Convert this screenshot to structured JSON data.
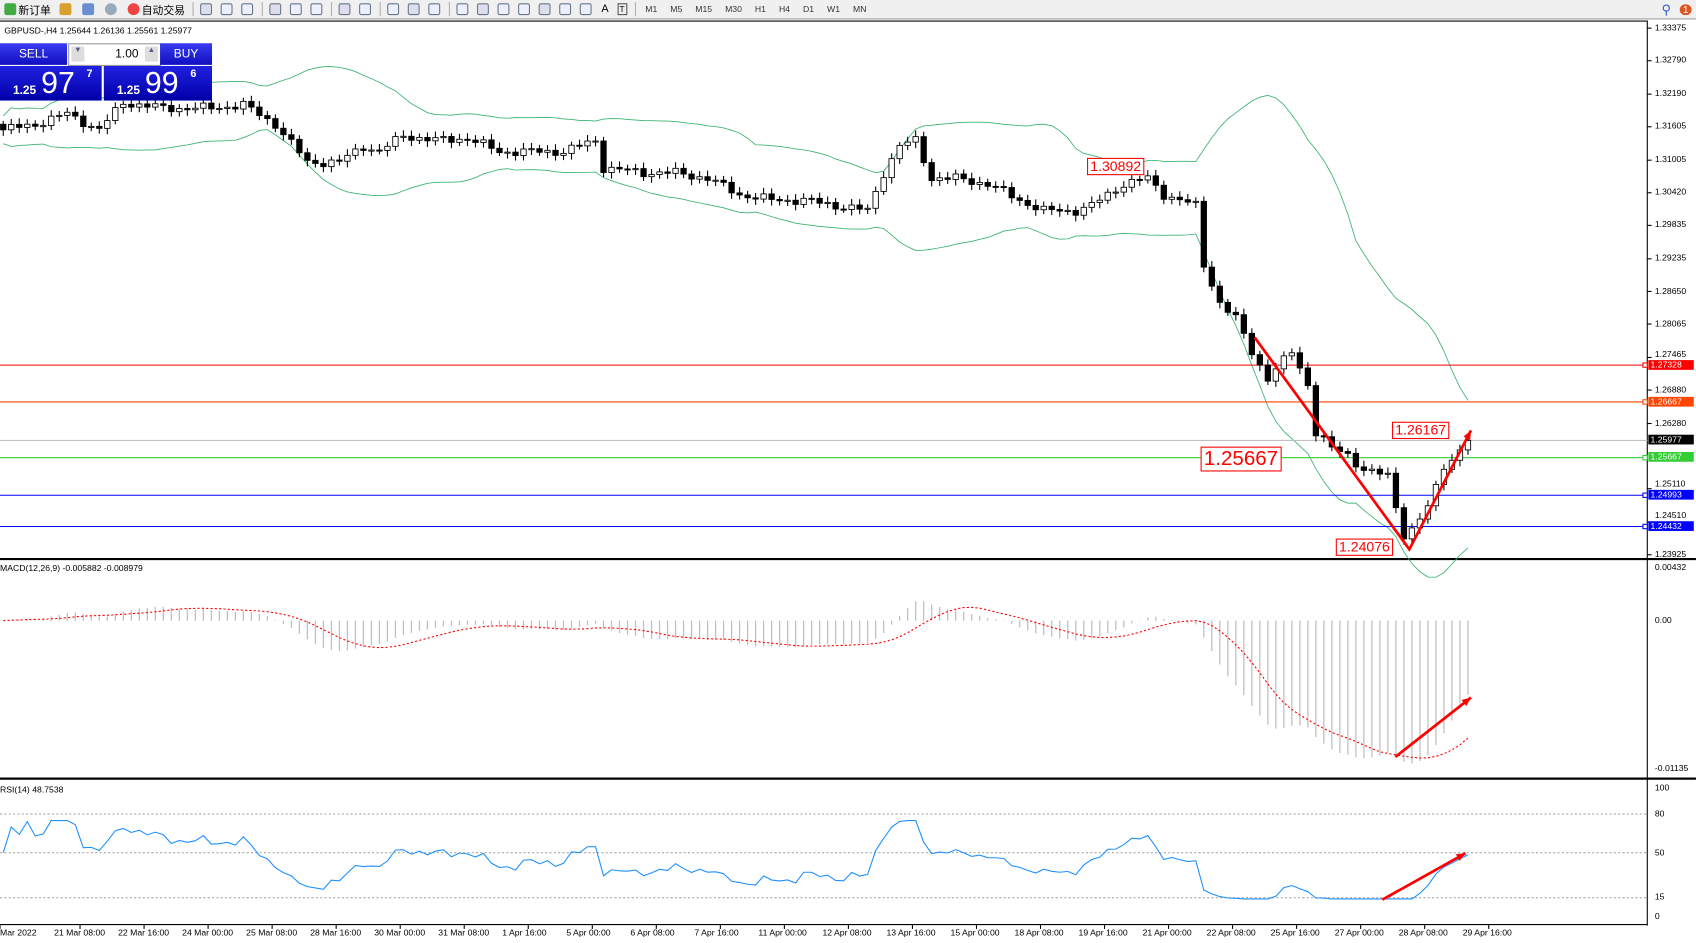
{
  "toolbar": {
    "items": [
      {
        "icon": "new-order-icon",
        "label": "新订单"
      },
      {
        "icon": "market-watch-icon",
        "label": ""
      },
      {
        "icon": "navigator-icon",
        "label": ""
      },
      {
        "icon": "signals-icon",
        "label": ""
      },
      {
        "icon": "autotrading-icon",
        "label": "自动交易"
      }
    ],
    "timeframes": [
      "M1",
      "M5",
      "M15",
      "M30",
      "H1",
      "H4",
      "D1",
      "W1",
      "MN"
    ],
    "tools": [
      "bar-chart-icon",
      "candlestick-icon",
      "line-chart-icon",
      "zoom-in-icon",
      "zoom-out-icon",
      "tile-windows-icon",
      "autoscroll-icon",
      "chart-shift-icon",
      "indicators-icon",
      "periods-icon",
      "templates-icon",
      "cursor-icon",
      "crosshair-icon",
      "vertical-line-icon",
      "horizontal-line-icon",
      "trendline-icon",
      "fibonacci-icon",
      "fibo-fan-icon"
    ],
    "text_tool": "A",
    "label_tool": "T",
    "notification_count": "1"
  },
  "chart": {
    "symbol_info": "GBPUSD-,H4  1.25644 1.26136 1.25561 1.25977",
    "trade_panel": {
      "sell": "SELL",
      "buy": "BUY",
      "volume": "1.00",
      "bid": {
        "small": "1.25",
        "big": "97",
        "pip": "7"
      },
      "ask": {
        "small": "1.25",
        "big": "99",
        "pip": "6"
      }
    },
    "price_axis": [
      "1.33375",
      "1.32790",
      "1.32190",
      "1.31605",
      "1.31005",
      "1.30420",
      "1.29835",
      "1.29235",
      "1.28650",
      "1.28065",
      "1.27465",
      "1.26880",
      "1.26280",
      "1.25110",
      "1.24510",
      "1.23925"
    ],
    "hlines": [
      {
        "price": 1.27328,
        "label": "1.27328",
        "color": "#ff0000"
      },
      {
        "price": 1.26667,
        "label": "1.26667",
        "color": "#ff4500"
      },
      {
        "price": 1.25977,
        "label": "1.25977",
        "color": "#c0c0c0",
        "tag": "#000000"
      },
      {
        "price": 1.25667,
        "label": "1.25667",
        "color": "#32cd32"
      },
      {
        "price": 1.24993,
        "label": "1.24993",
        "color": "#0000ff"
      },
      {
        "price": 1.24432,
        "label": "1.24432",
        "color": "#0000ff"
      }
    ],
    "annotations": [
      "1.30892",
      "1.26167",
      "1.25667",
      "1.24076"
    ],
    "colors": {
      "bands": "#3cb371",
      "candle": "#000000",
      "arrow": "#ff0000",
      "rsi": "#1e90ff",
      "macd_hist": "#c0c0c0",
      "macd_signal": "#ff0000"
    }
  },
  "macd": {
    "label": "MACD(12,26,9) -0.005882 -0.008979",
    "axis": [
      "0.00432",
      "0.00",
      "-0.01135"
    ]
  },
  "rsi": {
    "label": "RSI(14) 48.7538",
    "axis": [
      "100",
      "80",
      "50",
      "15",
      "0"
    ]
  },
  "time_axis": [
    "Mar 2022",
    "21 Mar 08:00",
    "22 Mar 16:00",
    "24 Mar 00:00",
    "25 Mar 08:00",
    "28 Mar 16:00",
    "30 Mar 00:00",
    "31 Mar 08:00",
    "1 Apr 16:00",
    "5 Apr 00:00",
    "6 Apr 08:00",
    "7 Apr 16:00",
    "11 Apr 00:00",
    "12 Apr 08:00",
    "13 Apr 16:00",
    "15 Apr 00:00",
    "18 Apr 08:00",
    "19 Apr 16:00",
    "21 Apr 00:00",
    "22 Apr 08:00",
    "25 Apr 16:00",
    "27 Apr 00:00",
    "28 Apr 08:00",
    "29 Apr 16:00"
  ],
  "chart_data": {
    "type": "candlestick",
    "timeframe": "H4",
    "close_path": [
      [
        0,
        1.3155
      ],
      [
        4,
        1.3165
      ],
      [
        8,
        1.3184
      ],
      [
        12,
        1.3155
      ],
      [
        15,
        1.3204
      ],
      [
        20,
        1.3194
      ],
      [
        26,
        1.3194
      ],
      [
        30,
        1.32
      ],
      [
        34,
        1.3165
      ],
      [
        38,
        1.3097
      ],
      [
        42,
        1.3097
      ],
      [
        45,
        1.3126
      ],
      [
        47,
        1.3116
      ],
      [
        50,
        1.3145
      ],
      [
        54,
        1.3136
      ],
      [
        58,
        1.314
      ],
      [
        62,
        1.3116
      ],
      [
        66,
        1.3116
      ],
      [
        70,
        1.3116
      ],
      [
        74,
        1.3136
      ],
      [
        75,
        1.3087
      ],
      [
        80,
        1.3078
      ],
      [
        84,
        1.3078
      ],
      [
        88,
        1.3068
      ],
      [
        92,
        1.3039
      ],
      [
        96,
        1.3029
      ],
      [
        100,
        1.3029
      ],
      [
        104,
        1.3019
      ],
      [
        108,
        1.301
      ],
      [
        110,
        1.3078
      ],
      [
        112,
        1.3126
      ],
      [
        114,
        1.3136
      ],
      [
        116,
        1.3068
      ],
      [
        119,
        1.3068
      ],
      [
        123,
        1.3058
      ],
      [
        127,
        1.3029
      ],
      [
        130,
        1.301
      ],
      [
        134,
        1.301
      ],
      [
        136,
        1.3019
      ],
      [
        138,
        1.3039
      ],
      [
        140,
        1.3058
      ],
      [
        143,
        1.3068
      ],
      [
        145,
        1.3039
      ],
      [
        149,
        1.3019
      ],
      [
        150,
        1.2913
      ],
      [
        152,
        1.2845
      ],
      [
        154,
        1.2816
      ],
      [
        156,
        1.2757
      ],
      [
        158,
        1.2709
      ],
      [
        161,
        1.2757
      ],
      [
        163,
        1.2699
      ],
      [
        164,
        1.2612
      ],
      [
        166,
        1.2583
      ],
      [
        168,
        1.2573
      ],
      [
        170,
        1.2544
      ],
      [
        173,
        1.2534
      ],
      [
        175,
        1.2428
      ],
      [
        176,
        1.2437
      ],
      [
        178,
        1.2476
      ],
      [
        180,
        1.2554
      ],
      [
        181,
        1.2563
      ],
      [
        183,
        1.2598
      ]
    ],
    "price_range": [
      1.23925,
      1.33375
    ],
    "macd_range": [
      -0.01135,
      0.00432
    ],
    "rsi_levels": [
      15,
      50,
      80
    ]
  }
}
